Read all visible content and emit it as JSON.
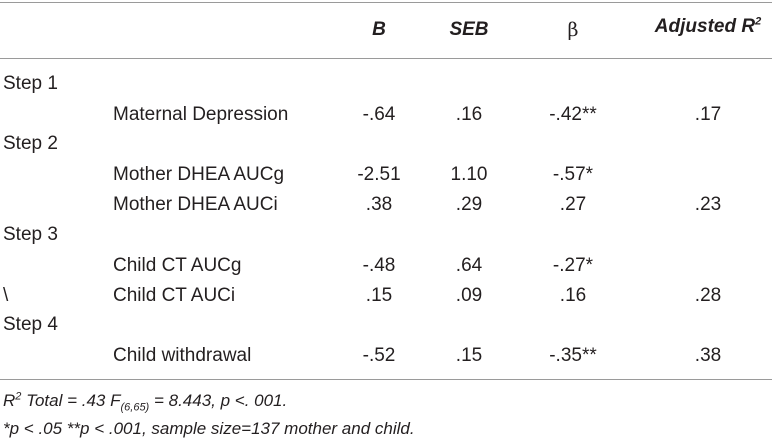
{
  "table": {
    "headers": {
      "b": "B",
      "seb": "SEB",
      "beta": "β",
      "adj_r2": "Adjusted R",
      "adj_r2_sup": "2"
    },
    "steps": [
      {
        "label": "Step 1",
        "rows": [
          {
            "prefix": "",
            "variable": "Maternal Depression",
            "b": "-.64",
            "seb": ".16",
            "beta": "-.42**",
            "r2": ".17"
          }
        ]
      },
      {
        "label": "Step 2",
        "rows": [
          {
            "prefix": "",
            "variable": "Mother DHEA AUCg",
            "b": "-2.51",
            "seb": "1.10",
            "beta": "-.57*",
            "r2": ""
          },
          {
            "prefix": "",
            "variable": "Mother DHEA AUCi",
            "b": ".38",
            "seb": ".29",
            "beta": ".27",
            "r2": ".23"
          }
        ]
      },
      {
        "label": "Step 3",
        "rows": [
          {
            "prefix": "",
            "variable": "Child CT AUCg",
            "b": "-.48",
            "seb": ".64",
            "beta": "-.27*",
            "r2": ""
          },
          {
            "prefix": "\\",
            "variable": "Child CT AUCi",
            "b": ".15",
            "seb": ".09",
            "beta": ".16",
            "r2": ".28"
          }
        ]
      },
      {
        "label": "Step 4",
        "rows": [
          {
            "prefix": "",
            "variable": "Child withdrawal",
            "b": "-.52",
            "seb": ".15",
            "beta": "-.35**",
            "r2": ".38"
          }
        ]
      }
    ]
  },
  "notes": {
    "line1": {
      "r": "R",
      "sup": "2",
      "mid": " Total = .43 F",
      "sub": "(6,65)",
      "tail": " = 8.443, p <. 001."
    },
    "line2": "*p < .05 **p < .001, sample size=137 mother and child."
  }
}
